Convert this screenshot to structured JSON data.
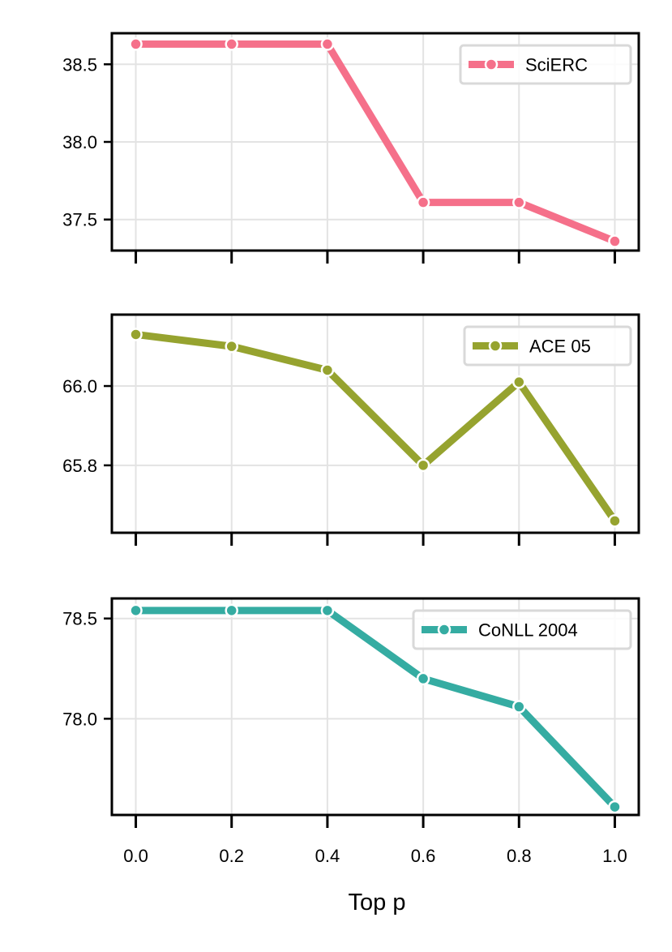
{
  "chart_data": [
    {
      "type": "line",
      "x": [
        0.0,
        0.2,
        0.4,
        0.6,
        0.8,
        1.0
      ],
      "series": [
        {
          "name": "SciERC",
          "values": [
            38.63,
            38.63,
            38.63,
            37.61,
            37.61,
            37.36
          ],
          "color": "#f5708a"
        }
      ],
      "ylim": [
        37.3,
        38.7
      ],
      "yticks": [
        "37.5",
        "38.0",
        "38.5"
      ],
      "xlabel": "",
      "ylabel": "",
      "grid": true,
      "legend": "upper right"
    },
    {
      "type": "line",
      "x": [
        0.0,
        0.2,
        0.4,
        0.6,
        0.8,
        1.0
      ],
      "series": [
        {
          "name": "ACE 05",
          "values": [
            66.13,
            66.1,
            66.04,
            65.8,
            66.01,
            65.66
          ],
          "color": "#96a32f"
        }
      ],
      "ylim": [
        65.63,
        66.18
      ],
      "yticks": [
        "65.8",
        "66.0"
      ],
      "xlabel": "",
      "ylabel": "",
      "grid": true,
      "legend": "upper right"
    },
    {
      "type": "line",
      "x": [
        0.0,
        0.2,
        0.4,
        0.6,
        0.8,
        1.0
      ],
      "series": [
        {
          "name": "CoNLL 2004",
          "values": [
            78.54,
            78.54,
            78.54,
            78.2,
            78.06,
            77.56
          ],
          "color": "#35aca2"
        }
      ],
      "ylim": [
        77.52,
        78.6
      ],
      "yticks": [
        "78.0",
        "78.5"
      ],
      "xlabel": "Top p",
      "ylabel": "",
      "xticks": [
        "0.0",
        "0.2",
        "0.4",
        "0.6",
        "0.8",
        "1.0"
      ],
      "grid": true,
      "legend": "upper right"
    }
  ]
}
